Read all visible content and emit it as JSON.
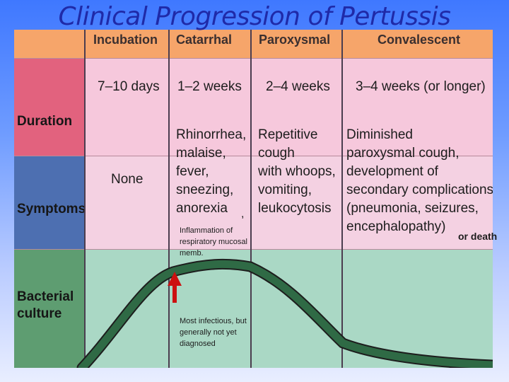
{
  "title": "Clinical Progression of Pertussis",
  "stages": [
    "Incubation",
    "Catarrhal",
    "Paroxysmal",
    "Convalescent"
  ],
  "rows": {
    "duration": {
      "label": "Duration",
      "values": [
        "7–10 days",
        "1–2 weeks",
        "2–4 weeks",
        "3–4 weeks (or longer)"
      ]
    },
    "symptoms": {
      "label": "Symptoms",
      "values": [
        "None",
        "Rhinorrhea,\nmalaise,\nfever,\nsneezing,\nanorexia",
        "Repetitive\ncough\nwith whoops,\nvomiting,\nleukocytosis",
        "Diminished\nparoxysmal cough,\ndevelopment of\nsecondary complications\n(pneumonia, seizures,\nencephalopathy)"
      ]
    },
    "culture": {
      "label": "Bacterial\nculture"
    }
  },
  "annotations": {
    "inflammation": "Inflammation of respiratory mucosal memb.",
    "comma": ",",
    "infectious": "Most infectious, but generally not yet diagnosed",
    "death": "or death"
  },
  "colors": {
    "title": "#1f2aa8",
    "header_band": "#f6a56a",
    "duration_head": "#e2627e",
    "symptoms_head": "#4d6fb1",
    "culture_head": "#5e9d71",
    "curve": "#2f6a45",
    "arrow": "#cc1010"
  }
}
